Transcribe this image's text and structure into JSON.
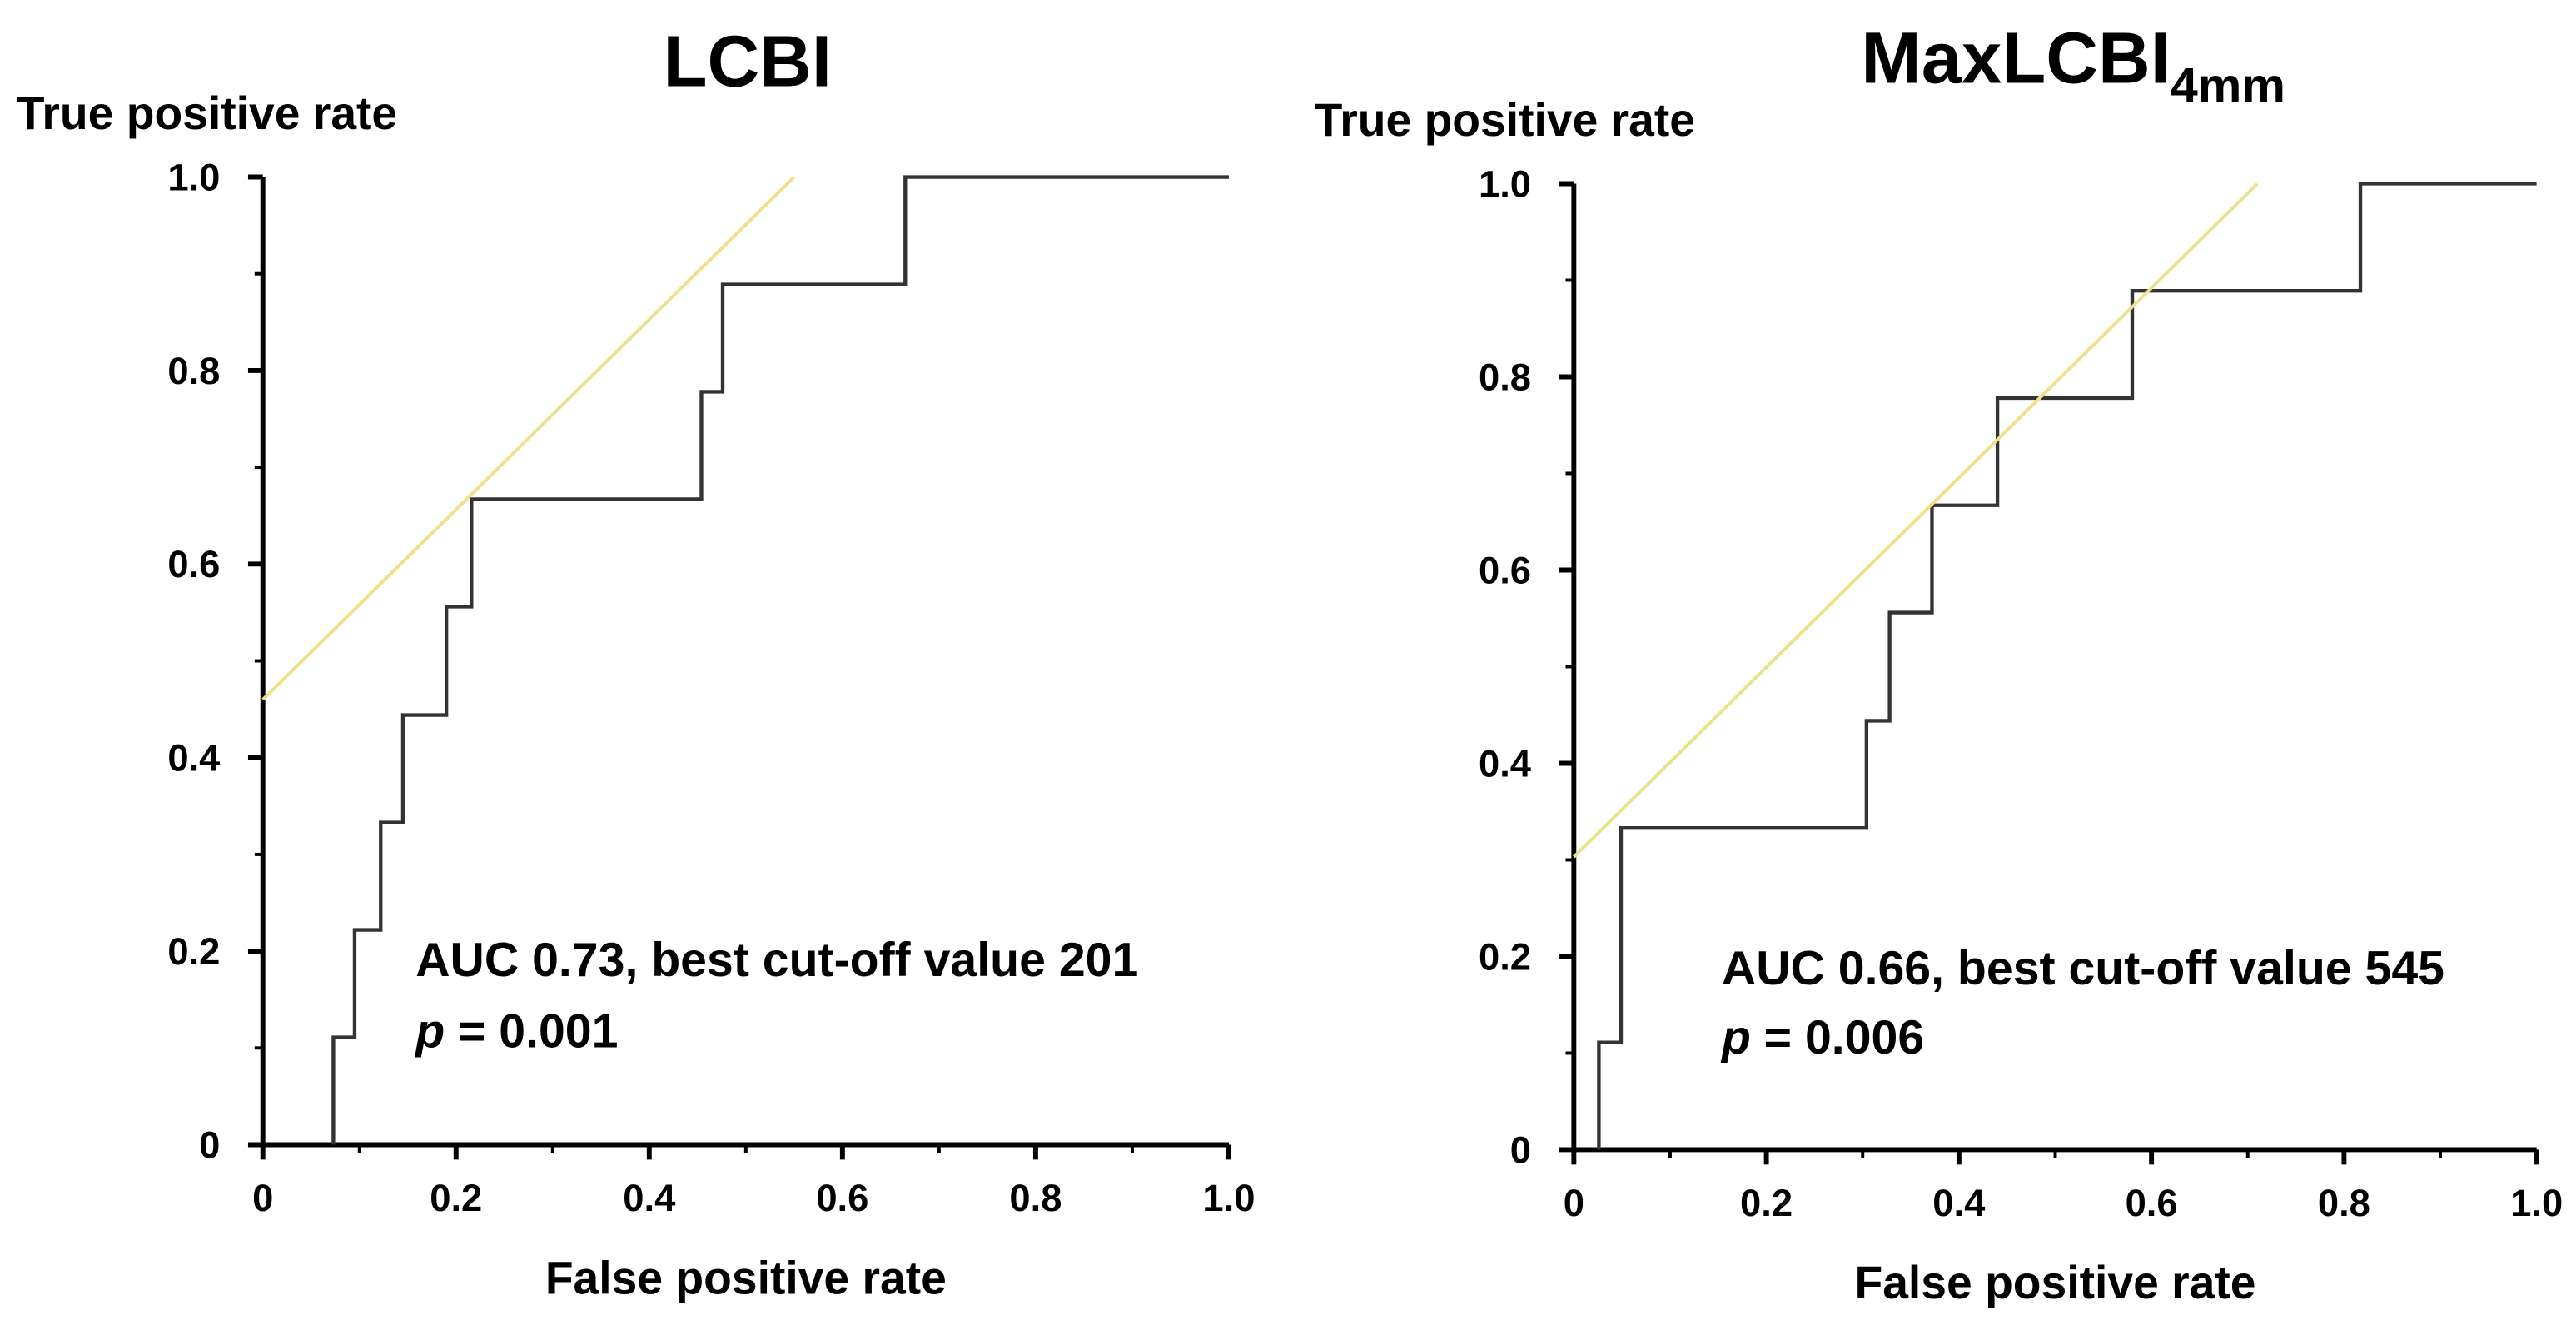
{
  "chart_data": [
    {
      "type": "line",
      "title": "LCBI",
      "ylabel": "True positive rate",
      "xlabel": "False positive rate",
      "xlim": [
        0,
        1
      ],
      "ylim": [
        0,
        1
      ],
      "xticks": [
        0,
        0.2,
        0.4,
        0.6,
        0.8,
        {
          "value": 1,
          "label": "1.0"
        }
      ],
      "yticks": [
        0,
        0.2,
        0.4,
        0.6,
        0.8,
        {
          "value": 1,
          "label": "1.0"
        }
      ],
      "xminorticks": [
        0.1,
        0.3,
        0.5,
        0.7,
        0.9
      ],
      "yminorticks": [
        0.1,
        0.3,
        0.5,
        0.7,
        0.9
      ],
      "series": [
        {
          "color": "#333333",
          "x": [
            0.073,
            0.073,
            0.095,
            0.095,
            0.122,
            0.122,
            0.145,
            0.145,
            0.19,
            0.19,
            0.216,
            0.216,
            0.454,
            0.454,
            0.476,
            0.476,
            0.665,
            0.665,
            1.0
          ],
          "values": [
            0,
            0.111,
            0.111,
            0.222,
            0.222,
            0.333,
            0.333,
            0.444,
            0.444,
            0.556,
            0.556,
            0.667,
            0.667,
            0.778,
            0.778,
            0.889,
            0.889,
            1.0,
            1.0
          ]
        },
        {
          "color": "#ede28a",
          "x": [
            0,
            0.55
          ],
          "values": [
            0.46,
            1.0
          ]
        }
      ],
      "annotation": {
        "text": "AUC 0.73, best cut-off value 201",
        "p_label": "p",
        "p_text": "= 0.001"
      }
    },
    {
      "type": "line",
      "title": "MaxLCBI",
      "title_subscript": "4mm",
      "ylabel": "True positive rate",
      "xlabel": "False positive rate",
      "xlim": [
        0,
        1
      ],
      "ylim": [
        0,
        1
      ],
      "xticks": [
        0,
        0.2,
        0.4,
        0.6,
        0.8,
        {
          "value": 1,
          "label": "1.0"
        }
      ],
      "yticks": [
        0,
        0.2,
        0.4,
        0.6,
        0.8,
        {
          "value": 1,
          "label": "1.0"
        }
      ],
      "xminorticks": [
        0.1,
        0.3,
        0.5,
        0.7,
        0.9
      ],
      "yminorticks": [
        0.1,
        0.3,
        0.5,
        0.7,
        0.9
      ],
      "series": [
        {
          "color": "#333333",
          "x": [
            0.026,
            0.026,
            0.049,
            0.049,
            0.304,
            0.304,
            0.328,
            0.328,
            0.372,
            0.372,
            0.44,
            0.44,
            0.58,
            0.58,
            0.817,
            0.817,
            1.0
          ],
          "values": [
            0,
            0.111,
            0.111,
            0.333,
            0.333,
            0.444,
            0.444,
            0.556,
            0.556,
            0.667,
            0.667,
            0.778,
            0.778,
            0.889,
            0.889,
            1.0,
            1.0
          ]
        },
        {
          "color": "#ede28a",
          "x": [
            0,
            0.71
          ],
          "values": [
            0.303,
            1.0
          ]
        }
      ],
      "annotation": {
        "text": "AUC 0.66, best cut-off value 545",
        "p_label": "p",
        "p_text": "= 0.006"
      }
    }
  ]
}
